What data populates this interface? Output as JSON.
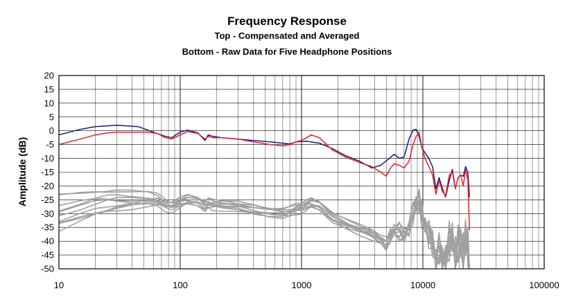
{
  "chart_data": {
    "type": "line",
    "title": "Frequency Response",
    "subtitle_top": "Top -  Compensated and Averaged",
    "subtitle_bottom": "Bottom - Raw Data for Five Headphone Positions",
    "xlabel": "",
    "ylabel": "Amplitude (dB)",
    "x_scale": "log",
    "xlim": [
      10,
      100000
    ],
    "ylim": [
      -50,
      20
    ],
    "x_ticks": [
      "10",
      "100",
      "1000",
      "10000",
      "100000"
    ],
    "y_ticks": [
      20,
      15,
      10,
      5,
      0,
      -5,
      -10,
      -15,
      -20,
      -25,
      -30,
      -35,
      -40,
      -45,
      -50
    ],
    "grid": true,
    "legend": "none",
    "series": [
      {
        "color": "#1a1a7a",
        "x": [
          10,
          15,
          20,
          30,
          45,
          60,
          75,
          85,
          100,
          115,
          140,
          160,
          170,
          185,
          220,
          300,
          400,
          550,
          700,
          800,
          900,
          1100,
          1400,
          1800,
          2300,
          3000,
          3800,
          4500,
          5300,
          5800,
          6400,
          7000,
          7700,
          8300,
          8800,
          9300,
          9800,
          10400,
          11200,
          12000,
          12800,
          13600,
          14500,
          15400,
          16500,
          17500,
          18500,
          19500,
          20500,
          21500,
          22500,
          23500,
          24200
        ],
        "y": [
          -1.5,
          0.5,
          1.5,
          2.0,
          1.5,
          -0.5,
          -2.0,
          -2.5,
          -0.5,
          0.2,
          -0.8,
          -3.5,
          -1.5,
          -2.0,
          -2.5,
          -3.0,
          -3.5,
          -4.0,
          -4.5,
          -4.8,
          -4.0,
          -3.8,
          -4.5,
          -6.5,
          -9.0,
          -11.0,
          -13.5,
          -12.5,
          -10.0,
          -8.5,
          -10.0,
          -9.5,
          -3.0,
          0.2,
          0.5,
          -2.0,
          -6.0,
          -8.0,
          -10.0,
          -13.0,
          -21.0,
          -17.0,
          -21.0,
          -24.0,
          -18.0,
          -14.0,
          -21.0,
          -17.0,
          -16.0,
          -16.5,
          -13.0,
          -15.0,
          -24.0
        ]
      },
      {
        "color": "#e8202a",
        "x": [
          10,
          15,
          20,
          25,
          30,
          40,
          55,
          65,
          75,
          85,
          100,
          115,
          140,
          160,
          170,
          185,
          220,
          300,
          400,
          550,
          700,
          800,
          900,
          1000,
          1100,
          1200,
          1400,
          1800,
          2300,
          3000,
          3800,
          4500,
          5000,
          5400,
          5800,
          6400,
          7000,
          7700,
          8300,
          8800,
          9300,
          9800,
          10400,
          11200,
          12000,
          12800,
          13600,
          14500,
          15400,
          16500,
          17500,
          18500,
          19500,
          20500,
          21500,
          22500,
          23500,
          24200
        ],
        "y": [
          -5.0,
          -3.0,
          -1.5,
          -0.8,
          -0.5,
          -0.5,
          -0.5,
          -1.0,
          -2.5,
          -3.0,
          -1.5,
          -0.3,
          -1.0,
          -3.0,
          -2.0,
          -2.5,
          -2.5,
          -3.0,
          -4.0,
          -5.0,
          -5.5,
          -5.0,
          -4.0,
          -3.5,
          -2.5,
          -1.5,
          -2.5,
          -7.0,
          -9.5,
          -11.5,
          -13.0,
          -15.0,
          -16.5,
          -13.5,
          -12.0,
          -12.5,
          -13.5,
          -11.0,
          -5.0,
          -2.0,
          -0.5,
          -6.0,
          -10.0,
          -13.0,
          -16.0,
          -23.0,
          -18.0,
          -22.0,
          -23.5,
          -16.0,
          -15.0,
          -21.0,
          -17.0,
          -16.0,
          -20.0,
          -14.0,
          -18.0,
          -36.0
        ]
      }
    ],
    "raw_positions": {
      "color": "#a0a0a0",
      "count": 10,
      "note_hidden": false
    }
  }
}
